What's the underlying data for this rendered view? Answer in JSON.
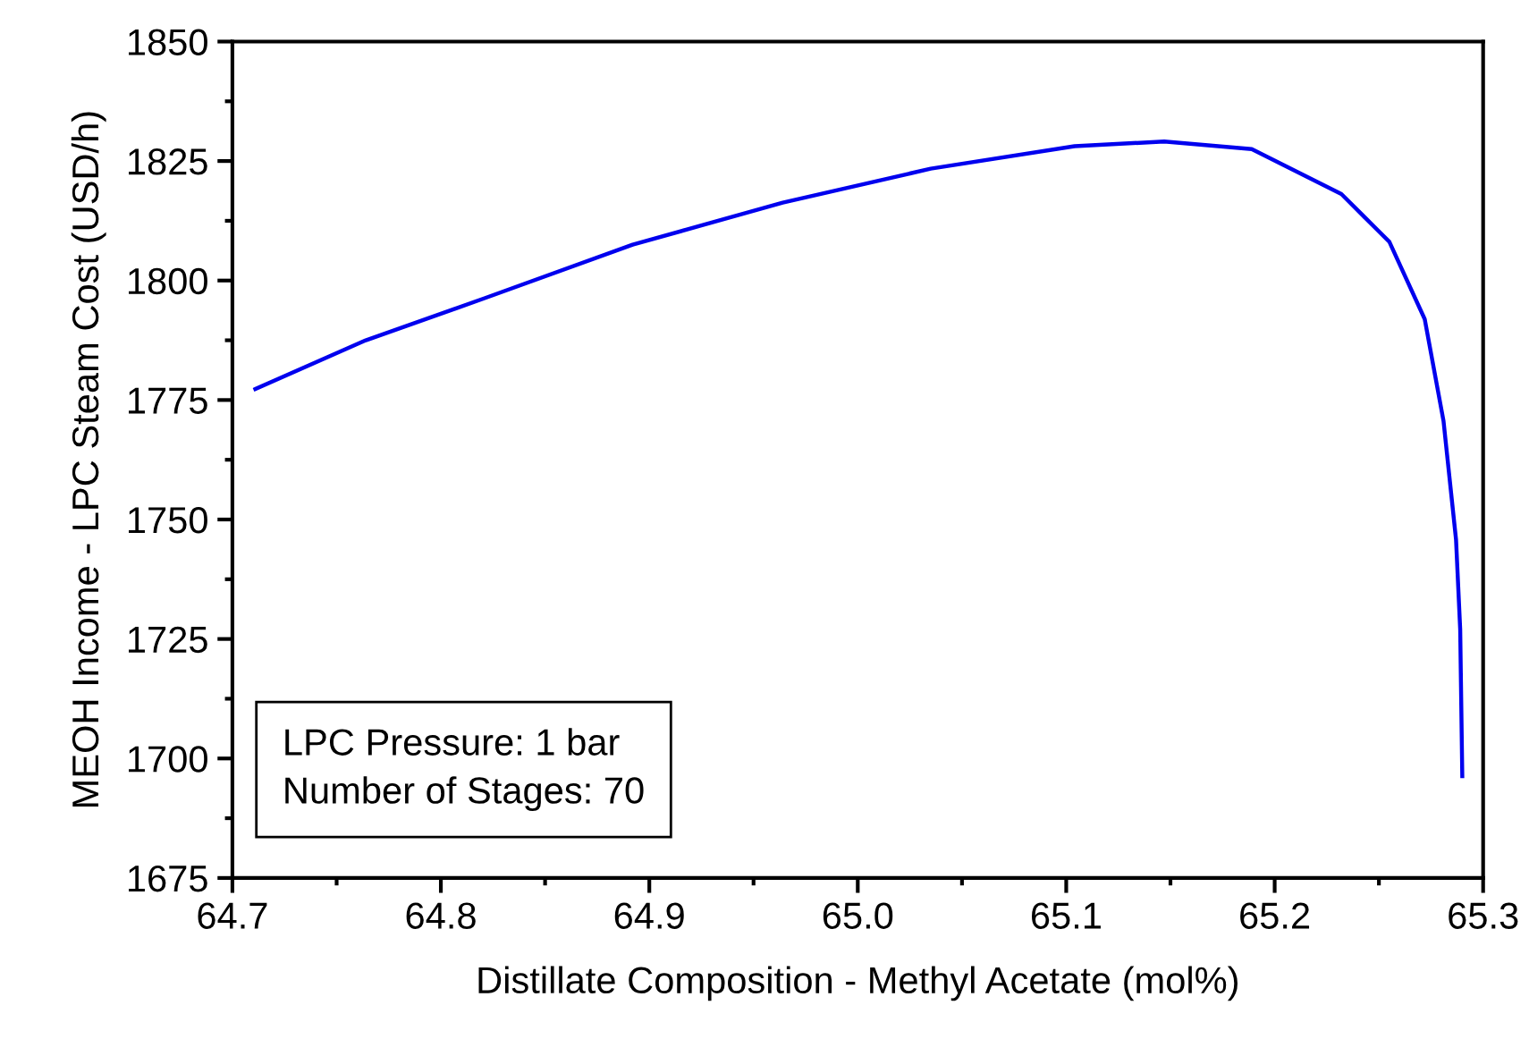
{
  "chart_data": {
    "type": "line",
    "xlabel": "Distillate Composition - Methyl Acetate (mol%)",
    "ylabel": "MEOH Income - LPC Steam Cost (USD/h)",
    "x": [
      64.711,
      64.764,
      64.821,
      64.892,
      64.964,
      65.035,
      65.104,
      65.147,
      65.189,
      65.232,
      65.255,
      65.272,
      65.281,
      65.287,
      65.289,
      65.29
    ],
    "series": [
      {
        "color": "#0000ee",
        "values": [
          1777.3,
          1787.5,
          1796.3,
          1807.5,
          1816.3,
          1823.4,
          1828.1,
          1829.1,
          1827.5,
          1818.1,
          1808.1,
          1791.9,
          1770.6,
          1745.8,
          1727,
          1696.3
        ]
      }
    ],
    "xlim": [
      64.7,
      65.3
    ],
    "xticks": [
      64.7,
      64.8,
      64.9,
      {
        "value": 65.0,
        "label": "65.0"
      },
      65.1,
      65.2,
      65.3
    ],
    "ylim": [
      1675,
      1850
    ],
    "yticks": [
      1675,
      1700,
      1725,
      1750,
      1775,
      1800,
      1825,
      1850
    ],
    "annotations": [
      "LPC Pressure: 1 bar\nNumber of Stages: 70"
    ],
    "grid": false,
    "legend": false,
    "marker": "none",
    "line_style": "solid"
  }
}
